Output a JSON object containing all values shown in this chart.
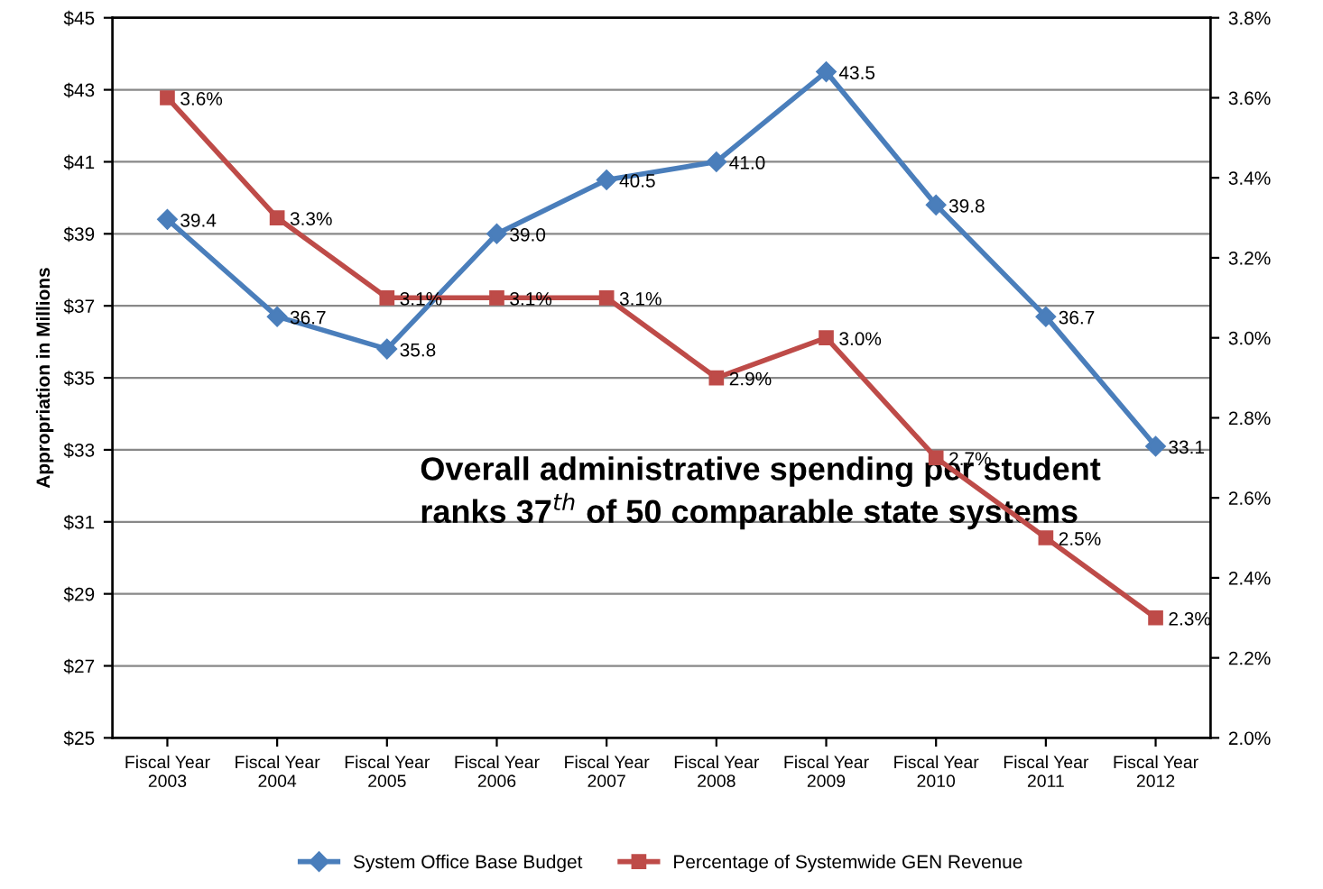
{
  "chart_data": {
    "type": "line",
    "ylabel": "Appropriation in Millions",
    "categories": [
      "Fiscal Year\n2003",
      "Fiscal Year\n2004",
      "Fiscal Year\n2005",
      "Fiscal Year\n2006",
      "Fiscal Year\n2007",
      "Fiscal Year\n2008",
      "Fiscal Year\n2009",
      "Fiscal Year\n2010",
      "Fiscal Year\n2011",
      "Fiscal Year\n2012"
    ],
    "series": [
      {
        "name": "System Office Base Budget",
        "color": "#4a7ebb",
        "marker": "diamond",
        "values": [
          39.4,
          36.7,
          35.8,
          39.0,
          40.5,
          41.0,
          43.5,
          39.8,
          36.7,
          33.1
        ],
        "value_labels": [
          "39.4",
          "36.7",
          "35.8",
          "39.0",
          "40.5",
          "41.0",
          "43.5",
          "39.8",
          "36.7",
          "33.1"
        ]
      },
      {
        "name": "Percentage of Systemwide GEN Revenue",
        "color": "#be4b48",
        "marker": "square",
        "axis": "y2",
        "values": [
          3.6,
          3.3,
          3.1,
          3.1,
          3.1,
          2.9,
          3.0,
          2.7,
          2.5,
          2.3
        ],
        "value_labels": [
          "3.6%",
          "3.3%",
          "3.1%",
          "3.1%",
          "3.1%",
          "2.9%",
          "3.0%",
          "2.7%",
          "2.5%",
          "2.3%"
        ]
      }
    ],
    "ylim": [
      25,
      45
    ],
    "yticks": [
      {
        "value": 25,
        "label": "$25"
      },
      {
        "value": 27,
        "label": "$27"
      },
      {
        "value": 29,
        "label": "$29"
      },
      {
        "value": 31,
        "label": "$31"
      },
      {
        "value": 33,
        "label": "$33"
      },
      {
        "value": 35,
        "label": "$35"
      },
      {
        "value": 37,
        "label": "$37"
      },
      {
        "value": 39,
        "label": "$39"
      },
      {
        "value": 41,
        "label": "$41"
      },
      {
        "value": 43,
        "label": "$43"
      },
      {
        "value": 45,
        "label": "$45"
      }
    ],
    "y2lim": [
      2.0,
      3.8
    ],
    "y2ticks": [
      {
        "value": 2.0,
        "label": "2.0%"
      },
      {
        "value": 2.2,
        "label": "2.2%"
      },
      {
        "value": 2.4,
        "label": "2.4%"
      },
      {
        "value": 2.6,
        "label": "2.6%"
      },
      {
        "value": 2.8,
        "label": "2.8%"
      },
      {
        "value": 3.0,
        "label": "3.0%"
      },
      {
        "value": 3.2,
        "label": "3.2%"
      },
      {
        "value": 3.4,
        "label": "3.4%"
      },
      {
        "value": 3.6,
        "label": "3.6%"
      },
      {
        "value": 3.8,
        "label": "3.8%"
      }
    ],
    "annotations": [
      "Overall administrative spending per student\nranks 37$^{th}$ of 50 comparable state systems"
    ],
    "grid": "y",
    "legend": "bottom"
  }
}
